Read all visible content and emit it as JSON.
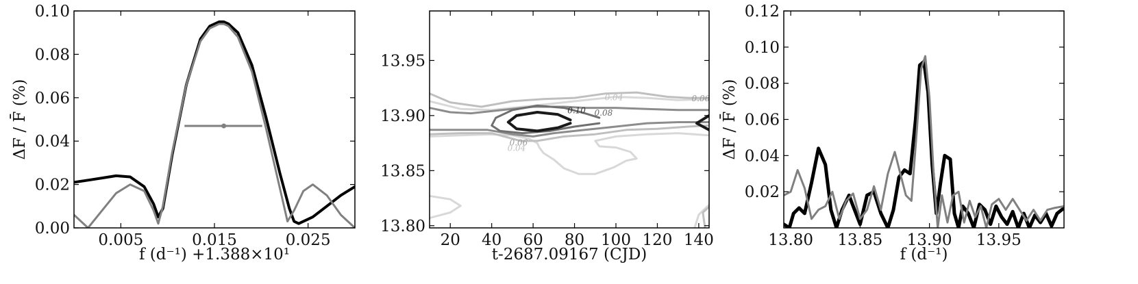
{
  "chart_data": [
    {
      "type": "line",
      "ylabel": "ΔF / F̄ (%)",
      "xlabel": "f (d⁻¹) +1.388×10¹",
      "xlim": [
        0.0,
        0.03
      ],
      "ylim": [
        0.0,
        0.1
      ],
      "xticks": [
        {
          "v": 0.005,
          "label": "0.005"
        },
        {
          "v": 0.015,
          "label": "0.015"
        },
        {
          "v": 0.025,
          "label": "0.025"
        }
      ],
      "yticks": [
        {
          "v": 0.0,
          "label": "0.00"
        },
        {
          "v": 0.02,
          "label": "0.02"
        },
        {
          "v": 0.04,
          "label": "0.04"
        },
        {
          "v": 0.06,
          "label": "0.06"
        },
        {
          "v": 0.08,
          "label": "0.08"
        },
        {
          "v": 0.1,
          "label": "0.10"
        }
      ],
      "colors": {
        "black": "#000000",
        "gray": "#808080"
      },
      "series": [
        {
          "color": "black",
          "width": 4,
          "x": [
            0.0,
            0.0015,
            0.003,
            0.0045,
            0.006,
            0.0075,
            0.0085,
            0.009,
            0.0095,
            0.0105,
            0.012,
            0.0135,
            0.0145,
            0.0155,
            0.016,
            0.0165,
            0.0175,
            0.019,
            0.0205,
            0.022,
            0.023,
            0.0235,
            0.024,
            0.0255,
            0.027,
            0.0285,
            0.03
          ],
          "y": [
            0.021,
            0.022,
            0.023,
            0.024,
            0.0235,
            0.019,
            0.011,
            0.005,
            0.009,
            0.034,
            0.066,
            0.087,
            0.093,
            0.095,
            0.095,
            0.094,
            0.09,
            0.075,
            0.051,
            0.025,
            0.009,
            0.003,
            0.002,
            0.005,
            0.01,
            0.015,
            0.019
          ]
        },
        {
          "color": "gray",
          "width": 3,
          "x": [
            0.0,
            0.0015,
            0.003,
            0.0045,
            0.006,
            0.0075,
            0.0085,
            0.009,
            0.0095,
            0.0105,
            0.012,
            0.0135,
            0.0145,
            0.0155,
            0.016,
            0.0165,
            0.0175,
            0.019,
            0.0205,
            0.022,
            0.0228,
            0.0235,
            0.0245,
            0.0255,
            0.027,
            0.0285,
            0.03
          ],
          "y": [
            0.006,
            0.0,
            0.008,
            0.016,
            0.02,
            0.017,
            0.008,
            0.002,
            0.01,
            0.035,
            0.066,
            0.086,
            0.092,
            0.094,
            0.094,
            0.093,
            0.088,
            0.072,
            0.046,
            0.018,
            0.003,
            0.008,
            0.017,
            0.02,
            0.015,
            0.006,
            0.0
          ]
        }
      ],
      "annotations": [
        {
          "kind": "hline",
          "x": [
            0.0118,
            0.0201
          ],
          "y": 0.047,
          "color": "gray",
          "marker_x": 0.016
        }
      ]
    },
    {
      "type": "contour",
      "xlabel": "t-2687.09167 (CJD)",
      "xlim": [
        10,
        145
      ],
      "ylim": [
        13.798,
        13.995
      ],
      "xticks": [
        {
          "v": 20,
          "label": "20"
        },
        {
          "v": 40,
          "label": "40"
        },
        {
          "v": 60,
          "label": "60"
        },
        {
          "v": 80,
          "label": "80"
        },
        {
          "v": 100,
          "label": "100"
        },
        {
          "v": 120,
          "label": "120"
        },
        {
          "v": 140,
          "label": "140"
        }
      ],
      "yticks": [
        {
          "v": 13.8,
          "label": "13.80"
        },
        {
          "v": 13.85,
          "label": "13.85"
        },
        {
          "v": 13.9,
          "label": "13.90"
        },
        {
          "v": 13.95,
          "label": "13.95"
        }
      ],
      "levels": [
        {
          "level": "0.02",
          "color": "#d8d8d8",
          "width": 3,
          "paths": [
            [
              [
                10,
                13.913
              ],
              [
                25,
                13.906
              ],
              [
                40,
                13.905
              ],
              [
                55,
                13.908
              ],
              [
                70,
                13.911
              ],
              [
                85,
                13.914
              ],
              [
                100,
                13.917
              ],
              [
                115,
                13.916
              ],
              [
                130,
                13.914
              ],
              [
                145,
                13.915
              ]
            ],
            [
              [
                10,
                13.881
              ],
              [
                25,
                13.882
              ],
              [
                40,
                13.883
              ],
              [
                50,
                13.882
              ],
              [
                58,
                13.879
              ],
              [
                62,
                13.875
              ],
              [
                63,
                13.871
              ],
              [
                65,
                13.866
              ],
              [
                70,
                13.86
              ],
              [
                75,
                13.852
              ],
              [
                82,
                13.847
              ],
              [
                90,
                13.847
              ],
              [
                99,
                13.853
              ],
              [
                105,
                13.859
              ],
              [
                110,
                13.861
              ],
              [
                107,
                13.867
              ],
              [
                100,
                13.871
              ],
              [
                92,
                13.872
              ],
              [
                90,
                13.877
              ],
              [
                100,
                13.881
              ],
              [
                115,
                13.883
              ],
              [
                130,
                13.884
              ],
              [
                145,
                13.882
              ]
            ],
            [
              [
                10,
                13.827
              ],
              [
                20,
                13.824
              ],
              [
                25,
                13.818
              ],
              [
                20,
                13.812
              ],
              [
                10,
                13.807
              ]
            ],
            [
              [
                138,
                13.798
              ],
              [
                140,
                13.81
              ],
              [
                145,
                13.819
              ]
            ]
          ]
        },
        {
          "level": "0.04",
          "color": "#bfbfbf",
          "width": 3,
          "paths": [
            [
              [
                10,
                13.92
              ],
              [
                20,
                13.912
              ],
              [
                35,
                13.908
              ],
              [
                50,
                13.913
              ],
              [
                65,
                13.915
              ],
              [
                80,
                13.916
              ],
              [
                95,
                13.92
              ],
              [
                110,
                13.921
              ],
              [
                125,
                13.917
              ],
              [
                135,
                13.916
              ],
              [
                145,
                13.916
              ]
            ],
            [
              [
                10,
                13.883
              ],
              [
                25,
                13.884
              ],
              [
                40,
                13.884
              ],
              [
                48,
                13.88
              ],
              [
                54,
                13.877
              ],
              [
                62,
                13.877
              ],
              [
                75,
                13.881
              ],
              [
                90,
                13.883
              ],
              [
                105,
                13.887
              ],
              [
                120,
                13.888
              ],
              [
                135,
                13.89
              ],
              [
                145,
                13.891
              ]
            ],
            [
              [
                143,
                13.798
              ],
              [
                142,
                13.812
              ],
              [
                145,
                13.817
              ]
            ]
          ]
        },
        {
          "level": "0.06",
          "color": "#8c8c8c",
          "width": 3,
          "paths": [
            [
              [
                10,
                13.907
              ],
              [
                20,
                13.903
              ],
              [
                30,
                13.902
              ],
              [
                45,
                13.905
              ],
              [
                60,
                13.908
              ],
              [
                75,
                13.908
              ],
              [
                85,
                13.907
              ],
              [
                100,
                13.907
              ],
              [
                115,
                13.906
              ],
              [
                130,
                13.905
              ],
              [
                145,
                13.905
              ]
            ],
            [
              [
                10,
                13.887
              ],
              [
                25,
                13.887
              ],
              [
                38,
                13.887
              ],
              [
                50,
                13.883
              ],
              [
                60,
                13.881
              ],
              [
                70,
                13.884
              ],
              [
                85,
                13.887
              ],
              [
                100,
                13.89
              ],
              [
                115,
                13.893
              ],
              [
                130,
                13.894
              ],
              [
                145,
                13.894
              ]
            ]
          ]
        },
        {
          "level": "0.08",
          "color": "#6f6f6f",
          "width": 3,
          "paths": [
            [
              [
                92,
                13.898
              ],
              [
                85,
                13.902
              ],
              [
                75,
                13.907
              ],
              [
                62,
                13.909
              ],
              [
                50,
                13.905
              ],
              [
                42,
                13.898
              ],
              [
                40,
                13.891
              ],
              [
                44,
                13.886
              ],
              [
                55,
                13.884
              ],
              [
                68,
                13.886
              ],
              [
                80,
                13.89
              ],
              [
                92,
                13.893
              ]
            ]
          ]
        },
        {
          "level": "0.10",
          "color": "#1a1a1a",
          "width": 4,
          "paths": [
            [
              [
                78,
                13.896
              ],
              [
                72,
                13.901
              ],
              [
                62,
                13.903
              ],
              [
                52,
                13.9
              ],
              [
                48,
                13.894
              ],
              [
                52,
                13.888
              ],
              [
                62,
                13.886
              ],
              [
                72,
                13.889
              ],
              [
                78,
                13.893
              ]
            ],
            [
              [
                145,
                13.9
              ],
              [
                139,
                13.893
              ],
              [
                145,
                13.887
              ]
            ]
          ]
        }
      ],
      "contour_labels": [
        {
          "text": "0.10",
          "x": 81,
          "y": 13.902,
          "color": "#333333"
        },
        {
          "text": "0.08",
          "x": 94,
          "y": 13.9,
          "color": "#666666"
        },
        {
          "text": "0.04",
          "x": 99,
          "y": 13.914,
          "color": "#bfbfbf"
        },
        {
          "text": "0.06",
          "x": 53,
          "y": 13.873,
          "color": "#999999"
        },
        {
          "text": "0.04",
          "x": 52,
          "y": 13.868,
          "color": "#bfbfbf"
        },
        {
          "text": "0.06",
          "x": 141,
          "y": 13.913,
          "color": "#999999"
        }
      ]
    },
    {
      "type": "line",
      "ylabel": "ΔF / F̄ (%)",
      "xlabel": "f (d⁻¹)",
      "xlim": [
        13.795,
        13.997
      ],
      "ylim": [
        0.0,
        0.12
      ],
      "xticks": [
        {
          "v": 13.8,
          "label": "13.80"
        },
        {
          "v": 13.85,
          "label": "13.85"
        },
        {
          "v": 13.9,
          "label": "13.90"
        },
        {
          "v": 13.95,
          "label": "13.95"
        }
      ],
      "yticks": [
        {
          "v": 0.02,
          "label": "0.02"
        },
        {
          "v": 0.04,
          "label": "0.04"
        },
        {
          "v": 0.06,
          "label": "0.06"
        },
        {
          "v": 0.08,
          "label": "0.08"
        },
        {
          "v": 0.1,
          "label": "0.10"
        },
        {
          "v": 0.12,
          "label": "0.12"
        }
      ],
      "series": [
        {
          "color": "black",
          "width": 5,
          "x": [
            13.795,
            13.799,
            13.802,
            13.806,
            13.81,
            13.815,
            13.82,
            13.825,
            13.829,
            13.833,
            13.837,
            13.842,
            13.846,
            13.85,
            13.855,
            13.86,
            13.865,
            13.87,
            13.874,
            13.878,
            13.882,
            13.886,
            13.89,
            13.893,
            13.896,
            13.899,
            13.902,
            13.905,
            13.908,
            13.911,
            13.915,
            13.918,
            13.921,
            13.924,
            13.928,
            13.932,
            13.936,
            13.94,
            13.944,
            13.948,
            13.952,
            13.956,
            13.96,
            13.964,
            13.968,
            13.972,
            13.976,
            13.98,
            13.984,
            13.988,
            13.992,
            13.997
          ],
          "y": [
            0.002,
            0.0,
            0.008,
            0.011,
            0.008,
            0.025,
            0.044,
            0.035,
            0.01,
            0.0,
            0.01,
            0.018,
            0.01,
            0.002,
            0.018,
            0.02,
            0.008,
            0.0,
            0.01,
            0.028,
            0.032,
            0.03,
            0.06,
            0.09,
            0.092,
            0.075,
            0.035,
            0.008,
            0.025,
            0.04,
            0.038,
            0.008,
            0.0,
            0.012,
            0.008,
            0.0,
            0.013,
            0.01,
            0.002,
            0.012,
            0.006,
            0.002,
            0.009,
            0.0,
            0.008,
            0.0,
            0.007,
            0.003,
            0.008,
            0.001,
            0.008,
            0.011
          ]
        },
        {
          "color": "gray",
          "width": 3,
          "x": [
            13.795,
            13.8,
            13.805,
            13.81,
            13.815,
            13.82,
            13.825,
            13.83,
            13.835,
            13.84,
            13.845,
            13.85,
            13.855,
            13.86,
            13.865,
            13.87,
            13.875,
            13.879,
            13.883,
            13.887,
            13.891,
            13.894,
            13.897,
            13.9,
            13.903,
            13.906,
            13.909,
            13.913,
            13.917,
            13.921,
            13.925,
            13.929,
            13.933,
            13.937,
            13.941,
            13.945,
            13.95,
            13.955,
            13.96,
            13.965,
            13.97,
            13.975,
            13.98,
            13.985,
            13.99,
            13.997
          ],
          "y": [
            0.018,
            0.02,
            0.032,
            0.022,
            0.005,
            0.01,
            0.012,
            0.02,
            0.005,
            0.015,
            0.019,
            0.005,
            0.01,
            0.023,
            0.01,
            0.03,
            0.042,
            0.03,
            0.018,
            0.015,
            0.055,
            0.088,
            0.095,
            0.072,
            0.03,
            0.0,
            0.018,
            0.003,
            0.018,
            0.02,
            0.003,
            0.015,
            0.006,
            0.012,
            0.0,
            0.013,
            0.016,
            0.01,
            0.016,
            0.01,
            0.004,
            0.01,
            0.004,
            0.01,
            0.011,
            0.012
          ]
        }
      ]
    }
  ]
}
